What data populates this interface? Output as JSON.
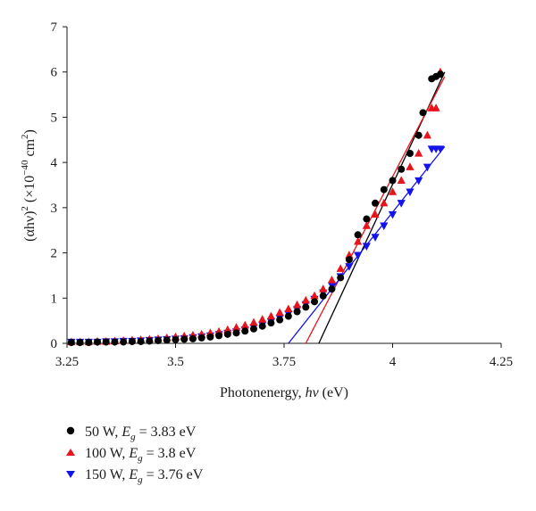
{
  "chart_data": {
    "type": "scatter",
    "xlabel": {
      "main": "Photonenergy, ",
      "sym": "hν",
      "unit": " (eV)"
    },
    "ylabel": {
      "p1": "(αhν)",
      "sup1": "2",
      "p2": " (×10",
      "sup2": "−40",
      "p3": " cm",
      "sup3": "2",
      "p4": ")"
    },
    "xlim": [
      3.25,
      4.25
    ],
    "ylim": [
      0,
      7
    ],
    "xticks": [
      3.25,
      3.5,
      3.75,
      4,
      4.25
    ],
    "xtick_labels": [
      "3.25",
      "3.5",
      "3.75",
      "4",
      "4.25"
    ],
    "yticks": [
      0,
      1,
      2,
      3,
      4,
      5,
      6,
      7
    ],
    "ytick_labels": [
      "0",
      "1",
      "2",
      "3",
      "4",
      "5",
      "6",
      "7"
    ],
    "grid": false,
    "legend_position": "bottom-left, below plot",
    "series": [
      {
        "name": "50 W",
        "legend": {
          "power": "50 W, ",
          "E": "E",
          "sub": "g",
          "value": " = 3.83 eV"
        },
        "marker": "circle",
        "color": "#000000",
        "points": [
          [
            3.26,
            0.02
          ],
          [
            3.28,
            0.02
          ],
          [
            3.3,
            0.02
          ],
          [
            3.32,
            0.03
          ],
          [
            3.34,
            0.03
          ],
          [
            3.36,
            0.03
          ],
          [
            3.38,
            0.03
          ],
          [
            3.4,
            0.04
          ],
          [
            3.42,
            0.04
          ],
          [
            3.44,
            0.05
          ],
          [
            3.46,
            0.06
          ],
          [
            3.48,
            0.07
          ],
          [
            3.5,
            0.08
          ],
          [
            3.52,
            0.09
          ],
          [
            3.54,
            0.1
          ],
          [
            3.56,
            0.12
          ],
          [
            3.58,
            0.14
          ],
          [
            3.6,
            0.17
          ],
          [
            3.62,
            0.2
          ],
          [
            3.64,
            0.23
          ],
          [
            3.66,
            0.27
          ],
          [
            3.68,
            0.32
          ],
          [
            3.7,
            0.38
          ],
          [
            3.72,
            0.45
          ],
          [
            3.74,
            0.52
          ],
          [
            3.76,
            0.6
          ],
          [
            3.78,
            0.7
          ],
          [
            3.8,
            0.8
          ],
          [
            3.82,
            0.92
          ],
          [
            3.84,
            1.05
          ],
          [
            3.86,
            1.2
          ],
          [
            3.88,
            1.45
          ],
          [
            3.9,
            1.85
          ],
          [
            3.92,
            2.4
          ],
          [
            3.94,
            2.75
          ],
          [
            3.96,
            3.1
          ],
          [
            3.98,
            3.4
          ],
          [
            4.0,
            3.6
          ],
          [
            4.02,
            3.85
          ],
          [
            4.04,
            4.2
          ],
          [
            4.06,
            4.6
          ],
          [
            4.07,
            5.1
          ],
          [
            4.09,
            5.85
          ],
          [
            4.1,
            5.9
          ],
          [
            4.11,
            5.95
          ]
        ],
        "fit": {
          "x": [
            3.83,
            4.12
          ],
          "y": [
            0,
            6.0
          ]
        }
      },
      {
        "name": "100 W",
        "legend": {
          "power": "100 W, ",
          "E": "E",
          "sub": "g",
          "value": " = 3.8 eV"
        },
        "marker": "triangle-up",
        "color": "#e8141b",
        "points": [
          [
            3.26,
            0.03
          ],
          [
            3.28,
            0.03
          ],
          [
            3.3,
            0.03
          ],
          [
            3.32,
            0.04
          ],
          [
            3.34,
            0.04
          ],
          [
            3.36,
            0.05
          ],
          [
            3.38,
            0.06
          ],
          [
            3.4,
            0.07
          ],
          [
            3.42,
            0.08
          ],
          [
            3.44,
            0.09
          ],
          [
            3.46,
            0.1
          ],
          [
            3.48,
            0.12
          ],
          [
            3.5,
            0.14
          ],
          [
            3.52,
            0.16
          ],
          [
            3.54,
            0.18
          ],
          [
            3.56,
            0.2
          ],
          [
            3.58,
            0.23
          ],
          [
            3.6,
            0.26
          ],
          [
            3.62,
            0.3
          ],
          [
            3.64,
            0.35
          ],
          [
            3.66,
            0.4
          ],
          [
            3.68,
            0.46
          ],
          [
            3.7,
            0.53
          ],
          [
            3.72,
            0.6
          ],
          [
            3.74,
            0.68
          ],
          [
            3.76,
            0.76
          ],
          [
            3.78,
            0.85
          ],
          [
            3.8,
            0.95
          ],
          [
            3.82,
            1.05
          ],
          [
            3.84,
            1.2
          ],
          [
            3.86,
            1.4
          ],
          [
            3.88,
            1.65
          ],
          [
            3.9,
            1.95
          ],
          [
            3.92,
            2.25
          ],
          [
            3.94,
            2.6
          ],
          [
            3.96,
            2.85
          ],
          [
            3.98,
            3.1
          ],
          [
            4.0,
            3.35
          ],
          [
            4.02,
            3.6
          ],
          [
            4.04,
            3.9
          ],
          [
            4.06,
            4.2
          ],
          [
            4.08,
            4.6
          ],
          [
            4.09,
            5.2
          ],
          [
            4.1,
            5.2
          ],
          [
            4.11,
            6.0
          ]
        ],
        "fit": {
          "x": [
            3.8,
            4.12
          ],
          "y": [
            0,
            5.9
          ]
        }
      },
      {
        "name": "150 W",
        "legend": {
          "power": "150 W, ",
          "E": "E",
          "sub": "g",
          "value": " = 3.76 eV"
        },
        "marker": "triangle-down",
        "color": "#1414e8",
        "points": [
          [
            3.26,
            0.03
          ],
          [
            3.28,
            0.03
          ],
          [
            3.3,
            0.03
          ],
          [
            3.32,
            0.03
          ],
          [
            3.34,
            0.04
          ],
          [
            3.36,
            0.04
          ],
          [
            3.38,
            0.05
          ],
          [
            3.4,
            0.05
          ],
          [
            3.42,
            0.06
          ],
          [
            3.44,
            0.07
          ],
          [
            3.46,
            0.08
          ],
          [
            3.48,
            0.09
          ],
          [
            3.5,
            0.1
          ],
          [
            3.52,
            0.11
          ],
          [
            3.54,
            0.13
          ],
          [
            3.56,
            0.15
          ],
          [
            3.58,
            0.17
          ],
          [
            3.6,
            0.2
          ],
          [
            3.62,
            0.23
          ],
          [
            3.64,
            0.26
          ],
          [
            3.66,
            0.3
          ],
          [
            3.68,
            0.35
          ],
          [
            3.7,
            0.41
          ],
          [
            3.72,
            0.48
          ],
          [
            3.74,
            0.56
          ],
          [
            3.76,
            0.65
          ],
          [
            3.78,
            0.75
          ],
          [
            3.8,
            0.86
          ],
          [
            3.82,
            0.98
          ],
          [
            3.84,
            1.12
          ],
          [
            3.86,
            1.28
          ],
          [
            3.88,
            1.48
          ],
          [
            3.9,
            1.7
          ],
          [
            3.92,
            1.95
          ],
          [
            3.94,
            2.15
          ],
          [
            3.96,
            2.35
          ],
          [
            3.98,
            2.6
          ],
          [
            4.0,
            2.85
          ],
          [
            4.02,
            3.1
          ],
          [
            4.04,
            3.35
          ],
          [
            4.06,
            3.6
          ],
          [
            4.08,
            3.9
          ],
          [
            4.09,
            4.3
          ],
          [
            4.1,
            4.3
          ],
          [
            4.11,
            4.3
          ]
        ],
        "fit": {
          "x": [
            3.76,
            4.12
          ],
          "y": [
            0,
            4.35
          ]
        }
      }
    ]
  }
}
